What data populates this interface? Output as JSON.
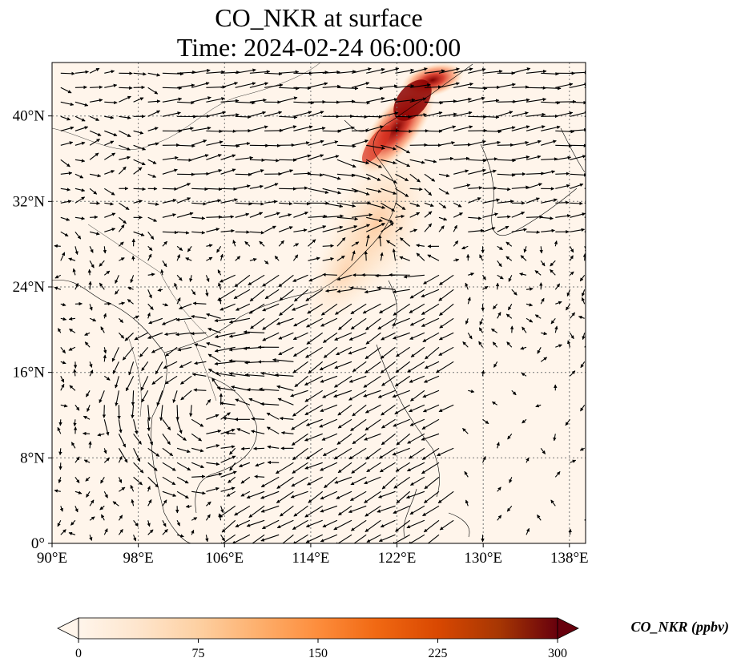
{
  "title_line1": "CO_NKR at surface",
  "title_line2": "Time: 2024-02-24 06:00:00",
  "map": {
    "lon_range": [
      90,
      139.5
    ],
    "lat_range": [
      0,
      45
    ],
    "lon_ticks": [
      "90°E",
      "98°E",
      "106°E",
      "114°E",
      "122°E",
      "130°E",
      "138°E"
    ],
    "lon_tick_values": [
      90,
      98,
      106,
      114,
      122,
      130,
      138
    ],
    "lat_ticks": [
      "0°",
      "8°N",
      "16°N",
      "24°N",
      "32°N",
      "40°N"
    ],
    "lat_tick_values": [
      0,
      8,
      16,
      24,
      32,
      40
    ],
    "gridlines": "dotted",
    "background_color": "#fff5eb",
    "plume": {
      "description_colors": [
        "#fff5eb",
        "#fdd0a2",
        "#fd8d3c",
        "#d94801",
        "#7f0000"
      ],
      "peak_lon": 122.5,
      "peak_lat": 39.5
    }
  },
  "colorbar": {
    "label": "CO_NKR (ppbv)",
    "ticks": [
      "0",
      "75",
      "150",
      "225",
      "300"
    ],
    "tick_values": [
      0,
      75,
      150,
      225,
      300
    ],
    "range": [
      0,
      300
    ],
    "colors": [
      "#fff5eb",
      "#fee6ce",
      "#fdd0a2",
      "#fdae6b",
      "#fd8d3c",
      "#f16913",
      "#d94801",
      "#a63603",
      "#7f2704",
      "#67000d"
    ],
    "extend": "both"
  }
}
